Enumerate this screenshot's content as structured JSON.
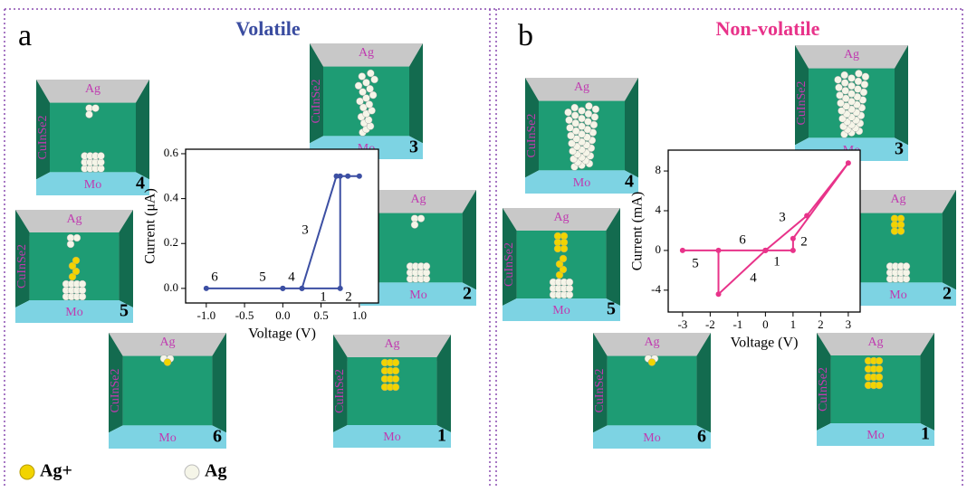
{
  "chart_data": [
    {
      "type": "line",
      "title": "Volatile",
      "title_color": "#3a4ca0",
      "x_label": "Voltage (V)",
      "y_label": "Current (μA)",
      "xlim": [
        -1.27,
        1.25
      ],
      "ylim": [
        -0.065,
        0.62
      ],
      "xticks": [
        {
          "value": -1,
          "label": "-1.0"
        },
        {
          "value": -0.5,
          "label": "-0.5"
        },
        {
          "value": 0,
          "label": "0.0"
        },
        {
          "value": 0.5,
          "label": "0.5"
        },
        {
          "value": 1,
          "label": "1.0"
        }
      ],
      "yticks": [
        {
          "value": 0,
          "label": "0.0"
        },
        {
          "value": 0.2,
          "label": "0.2"
        },
        {
          "value": 0.4,
          "label": "0.4"
        },
        {
          "value": 0.6,
          "label": "0.6"
        }
      ],
      "series": [
        {
          "color": "#3c4fa3",
          "x": [
            0,
            0.75,
            0.75,
            1.0,
            0.85,
            0.7,
            0.25,
            0.25,
            -1.0,
            0
          ],
          "values": [
            0,
            0,
            0.5,
            0.5,
            0.5,
            0.5,
            0.0,
            0,
            0,
            0
          ]
        }
      ],
      "annotations": [
        "6",
        "5",
        "4",
        "1",
        "2",
        "3"
      ]
    },
    {
      "type": "line",
      "title": "Non-volatile",
      "title_color": "#e8338a",
      "x_label": "Voltage (V)",
      "y_label": "Current (mA)",
      "xlim": [
        -3.52,
        3.43
      ],
      "ylim": [
        -6.2,
        10.1
      ],
      "xticks": [
        -3,
        -2,
        -1,
        0,
        1,
        2,
        3
      ],
      "yticks": [
        -4,
        0,
        4,
        8
      ],
      "series": [
        {
          "color": "#e8338a",
          "x": [
            0,
            1.0,
            1.0,
            3.0,
            1.5,
            0,
            -1.7,
            -1.7,
            -3.0,
            0
          ],
          "values": [
            0,
            0,
            1.2,
            8.8,
            3.5,
            0,
            -4.4,
            0,
            0,
            0
          ]
        }
      ],
      "annotations": [
        "6",
        "5",
        "1",
        "2",
        "3",
        "4"
      ]
    }
  ],
  "panels": [
    {
      "label": "a",
      "cells": [
        {
          "top": "Ag",
          "side": "CuInSe2",
          "bottom": "Mo",
          "number": "4"
        },
        {
          "top": "Ag",
          "side": "CuInSe2",
          "bottom": "Mo",
          "number": "3"
        },
        {
          "top": "Ag",
          "side": "CuInSe2",
          "bottom": "Mo",
          "number": "2"
        },
        {
          "top": "Ag",
          "side": "CuInSe2",
          "bottom": "Mo",
          "number": "5"
        },
        {
          "top": "Ag",
          "side": "CuInSe2",
          "bottom": "Mo",
          "number": "6"
        },
        {
          "top": "Ag",
          "side": "CuInSe2",
          "bottom": "Mo",
          "number": "1"
        }
      ]
    },
    {
      "label": "b",
      "cells": [
        {
          "top": "Ag",
          "side": "CuInSe2",
          "bottom": "Mo",
          "number": "4"
        },
        {
          "top": "Ag",
          "side": "CuInSe2",
          "bottom": "Mo",
          "number": "3"
        },
        {
          "top": "Ag",
          "side": "CuInSe2",
          "bottom": "Mo",
          "number": "2"
        },
        {
          "top": "Ag",
          "side": "CuInSe2",
          "bottom": "Mo",
          "number": "5"
        },
        {
          "top": "Ag",
          "side": "CuInSe2",
          "bottom": "Mo",
          "number": "6"
        },
        {
          "top": "Ag",
          "side": "CuInSe2",
          "bottom": "Mo",
          "number": "1"
        }
      ]
    }
  ],
  "legend": {
    "ion": "Ag+",
    "atom": "Ag"
  }
}
